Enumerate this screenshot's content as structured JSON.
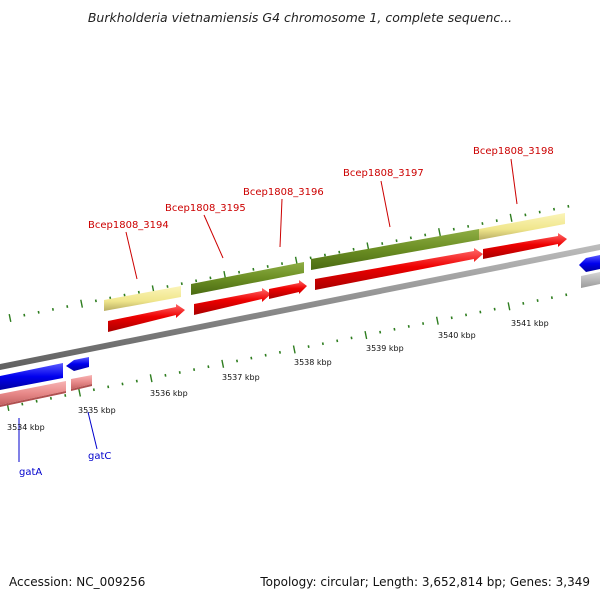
{
  "title": "Burkholderia vietnamiensis G4 chromosome 1, complete sequenc...",
  "footer": {
    "accession": "Accession: NC_009256",
    "summary": "Topology: circular; Length: 3,652,814 bp; Genes: 3,349"
  },
  "colors": {
    "backbone": "#8c8c8c",
    "tick": "#2e7d1f",
    "forward_gene": "#0000ee",
    "forward_gene_faded": "#e88a8a",
    "reverse_cds": "#ee0000",
    "cog_green": "#6b8e23",
    "cog_yellow": "#f0e68c",
    "label_red": "#cc0000",
    "label_blue": "#0000cc"
  },
  "scale": {
    "unit": "kbp",
    "ticks": [
      "3534 kbp",
      "3535 kbp",
      "3536 kbp",
      "3537 kbp",
      "3538 kbp",
      "3539 kbp",
      "3540 kbp",
      "3541 kbp"
    ]
  },
  "gene_labels": [
    {
      "id": "bcep3194",
      "text": "Bcep1808_3194",
      "color": "red"
    },
    {
      "id": "bcep3195",
      "text": "Bcep1808_3195",
      "color": "red"
    },
    {
      "id": "bcep3196",
      "text": "Bcep1808_3196",
      "color": "red"
    },
    {
      "id": "bcep3197",
      "text": "Bcep1808_3197",
      "color": "red"
    },
    {
      "id": "bcep3198",
      "text": "Bcep1808_3198",
      "color": "red"
    },
    {
      "id": "gatA",
      "text": "gatA",
      "color": "blue"
    },
    {
      "id": "gatC",
      "text": "gatC",
      "color": "blue"
    }
  ]
}
